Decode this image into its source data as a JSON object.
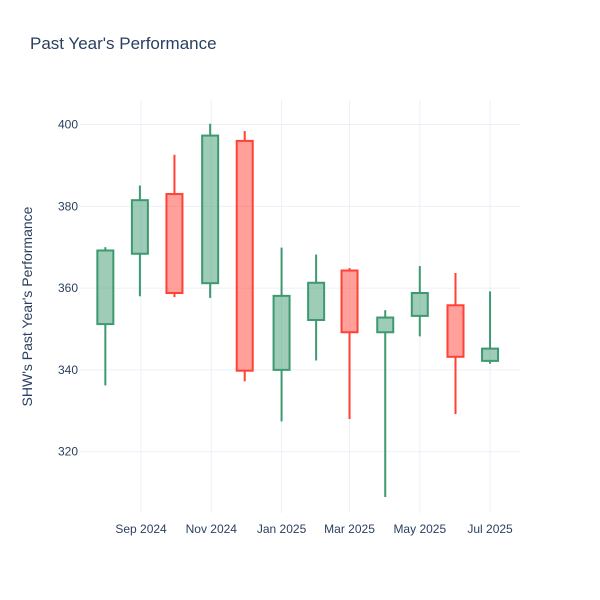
{
  "chart_data": {
    "type": "candlestick",
    "title": "Past Year's Performance",
    "xlabel": "",
    "ylabel": "SHW's Past Year's Performance",
    "ylim": [
      305,
      406
    ],
    "xlim": [
      "2024-07-10",
      "2025-07-27"
    ],
    "grid": true,
    "legend": "none",
    "colors": {
      "increasing": "#3d9970",
      "decreasing": "#ff4136",
      "grid": "#ebf0f8",
      "text": "#2a3f5f"
    },
    "y_ticks": [
      320,
      340,
      360,
      380,
      400
    ],
    "x_ticks": [
      {
        "date": "2024-09-01",
        "label": "Sep 2024"
      },
      {
        "date": "2024-11-01",
        "label": "Nov 2024"
      },
      {
        "date": "2025-01-01",
        "label": "Jan 2025"
      },
      {
        "date": "2025-03-01",
        "label": "Mar 2025"
      },
      {
        "date": "2025-05-01",
        "label": "May 2025"
      },
      {
        "date": "2025-07-01",
        "label": "Jul 2025"
      }
    ],
    "candles": [
      {
        "date": "2024-08-01",
        "open": 351.2,
        "high": 370.0,
        "low": 336.2,
        "close": 369.2
      },
      {
        "date": "2024-08-31",
        "open": 368.4,
        "high": 385.1,
        "low": 358.0,
        "close": 381.5
      },
      {
        "date": "2024-09-30",
        "open": 383.0,
        "high": 392.6,
        "low": 357.8,
        "close": 358.8
      },
      {
        "date": "2024-10-31",
        "open": 361.2,
        "high": 400.2,
        "low": 357.6,
        "close": 397.3
      },
      {
        "date": "2024-11-30",
        "open": 396.0,
        "high": 398.4,
        "low": 337.2,
        "close": 339.8
      },
      {
        "date": "2025-01-01",
        "open": 340.0,
        "high": 369.9,
        "low": 327.4,
        "close": 358.1
      },
      {
        "date": "2025-01-31",
        "open": 352.2,
        "high": 368.2,
        "low": 342.3,
        "close": 361.3
      },
      {
        "date": "2025-03-01",
        "open": 364.3,
        "high": 364.9,
        "low": 328.0,
        "close": 349.2
      },
      {
        "date": "2025-04-01",
        "open": 349.2,
        "high": 354.6,
        "low": 308.9,
        "close": 352.8
      },
      {
        "date": "2025-05-01",
        "open": 353.2,
        "high": 365.4,
        "low": 348.2,
        "close": 358.8
      },
      {
        "date": "2025-06-01",
        "open": 355.8,
        "high": 363.7,
        "low": 329.2,
        "close": 343.2
      },
      {
        "date": "2025-07-01",
        "open": 342.2,
        "high": 359.2,
        "low": 341.5,
        "close": 345.2
      }
    ]
  }
}
